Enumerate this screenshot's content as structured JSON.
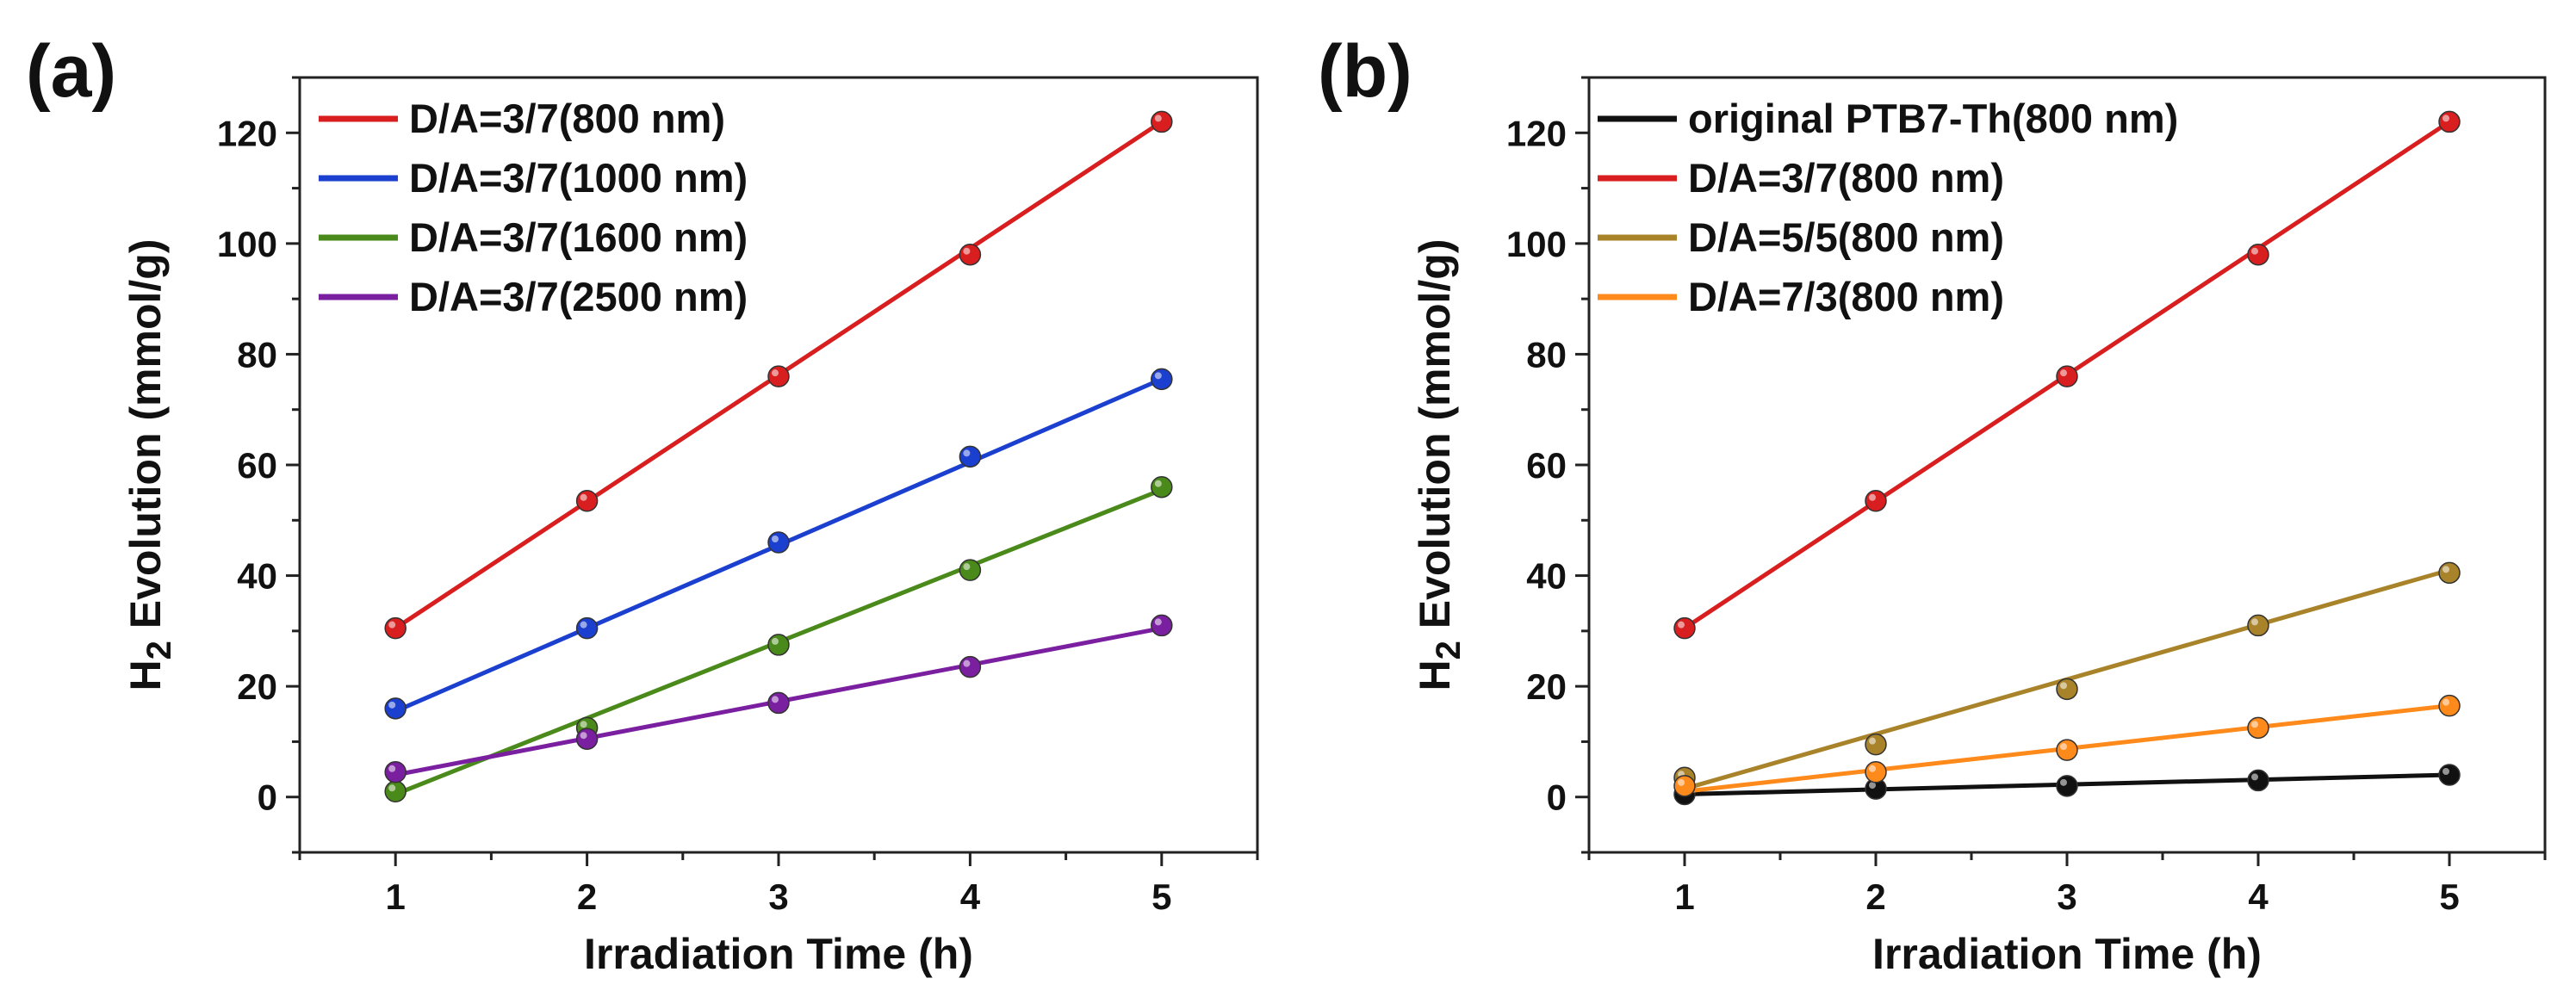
{
  "chart_data": [
    {
      "panel_label": "(a)",
      "type": "line",
      "title": "",
      "xlabel": "Irradiation Time (h)",
      "ylabel_main": "H",
      "ylabel_sub": "2",
      "ylabel_rest": " Evolution (mmol/g)",
      "xlim": [
        0.5,
        5.5
      ],
      "ylim": [
        -10,
        130
      ],
      "xticks": [
        1,
        2,
        3,
        4,
        5
      ],
      "yticks": [
        0,
        20,
        40,
        60,
        80,
        100,
        120
      ],
      "grid": false,
      "legend_position": "top-left",
      "x": [
        1,
        2,
        3,
        4,
        5
      ],
      "series": [
        {
          "name": "D/A=3/7(800 nm)",
          "color": "#d81e1e",
          "values": [
            30.5,
            53.5,
            76,
            98,
            122
          ],
          "fit": [
            30.5,
            122
          ]
        },
        {
          "name": "D/A=3/7(1000 nm)",
          "color": "#1b3fcf",
          "values": [
            16,
            30.5,
            46,
            61.5,
            75.5
          ],
          "fit": [
            15.5,
            75.5
          ]
        },
        {
          "name": "D/A=3/7(1600 nm)",
          "color": "#4a8a1a",
          "values": [
            1,
            12.5,
            27.5,
            41,
            56
          ],
          "fit": [
            0.5,
            55.5
          ]
        },
        {
          "name": "D/A=3/7(2500 nm)",
          "color": "#7a1fa0",
          "values": [
            4.5,
            10.5,
            17,
            23.5,
            31
          ],
          "fit": [
            4,
            30.5
          ]
        }
      ]
    },
    {
      "panel_label": "(b)",
      "type": "line",
      "title": "",
      "xlabel": "Irradiation Time (h)",
      "ylabel_main": "H",
      "ylabel_sub": "2",
      "ylabel_rest": " Evolution (mmol/g)",
      "xlim": [
        0.5,
        5.5
      ],
      "ylim": [
        -10,
        130
      ],
      "xticks": [
        1,
        2,
        3,
        4,
        5
      ],
      "yticks": [
        0,
        20,
        40,
        60,
        80,
        100,
        120
      ],
      "grid": false,
      "legend_position": "top-left",
      "x": [
        1,
        2,
        3,
        4,
        5
      ],
      "series": [
        {
          "name": "original PTB7-Th(800 nm)",
          "color": "#111111",
          "values": [
            0.5,
            1.5,
            2,
            3,
            4
          ],
          "fit": [
            0.5,
            4
          ]
        },
        {
          "name": "D/A=3/7(800 nm)",
          "color": "#d81e1e",
          "values": [
            30.5,
            53.5,
            76,
            98,
            122
          ],
          "fit": [
            30.5,
            122
          ]
        },
        {
          "name": "D/A=5/5(800 nm)",
          "color": "#a8832a",
          "values": [
            3.5,
            9.5,
            19.5,
            31,
            40.5
          ],
          "fit": [
            1.5,
            41
          ]
        },
        {
          "name": "D/A=7/3(800 nm)",
          "color": "#ff8a1c",
          "values": [
            2,
            4.5,
            8.5,
            12.5,
            16.5
          ],
          "fit": [
            1,
            16.5
          ]
        }
      ]
    }
  ]
}
